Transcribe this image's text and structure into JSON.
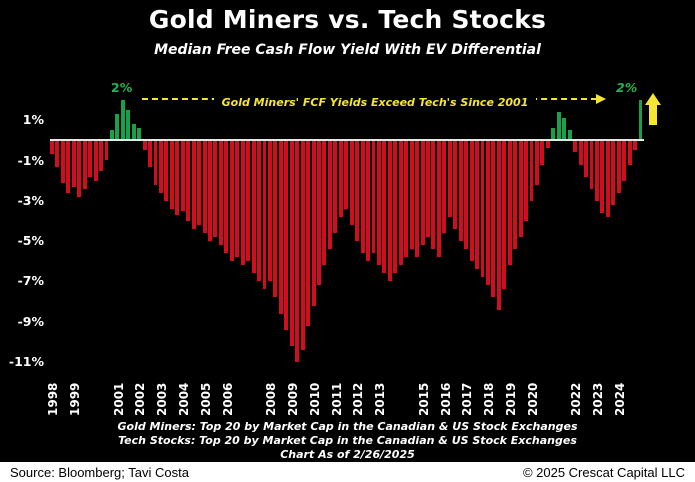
{
  "header": {
    "title": "Gold Miners vs. Tech Stocks",
    "subtitle": "Median Free Cash Flow Yield With EV Differential"
  },
  "chart_data": {
    "type": "bar",
    "title": "Gold Miners vs. Tech Stocks",
    "subtitle": "Median Free Cash Flow Yield With EV Differential",
    "xlabel": "",
    "ylabel": "",
    "ylim": [
      -11.5,
      2.5
    ],
    "grid": false,
    "frequency": "quarterly",
    "x_start_year": 1998,
    "bar_color_negative": "#d10e1e",
    "bar_color_positive": "#18a14a",
    "zero_line_color": "#e6e6e6",
    "yticks": [
      {
        "label": "1%",
        "value": 1
      },
      {
        "label": "-1%",
        "value": -1
      },
      {
        "label": "-3%",
        "value": -3
      },
      {
        "label": "-5%",
        "value": -5
      },
      {
        "label": "-7%",
        "value": -7
      },
      {
        "label": "-9%",
        "value": -9
      },
      {
        "label": "-11%",
        "value": -11
      }
    ],
    "x_year_labels": [
      1998,
      1999,
      2001,
      2002,
      2003,
      2004,
      2005,
      2006,
      2008,
      2009,
      2010,
      2011,
      2012,
      2013,
      2015,
      2016,
      2017,
      2018,
      2019,
      2020,
      2022,
      2023,
      2024
    ],
    "series_quarterly": [
      {
        "year": 1998,
        "values": [
          -0.7,
          -1.3,
          -2.1,
          -2.6
        ]
      },
      {
        "year": 1999,
        "values": [
          -2.3,
          -2.8,
          -2.4,
          -1.8
        ]
      },
      {
        "year": 2000,
        "values": [
          -2.0,
          -1.5,
          -1.0,
          0.5
        ]
      },
      {
        "year": 2001,
        "values": [
          1.3,
          2.0,
          1.5,
          0.8
        ]
      },
      {
        "year": 2002,
        "values": [
          0.6,
          -0.5,
          -1.3,
          -2.2
        ]
      },
      {
        "year": 2003,
        "values": [
          -2.6,
          -3.0,
          -3.4,
          -3.7
        ]
      },
      {
        "year": 2004,
        "values": [
          -3.5,
          -4.0,
          -4.4,
          -4.2
        ]
      },
      {
        "year": 2005,
        "values": [
          -4.6,
          -5.0,
          -4.8,
          -5.2
        ]
      },
      {
        "year": 2006,
        "values": [
          -5.6,
          -6.0,
          -5.8,
          -6.2
        ]
      },
      {
        "year": 2007,
        "values": [
          -6.0,
          -6.6,
          -7.0,
          -7.4
        ]
      },
      {
        "year": 2008,
        "values": [
          -7.0,
          -7.8,
          -8.6,
          -9.4
        ]
      },
      {
        "year": 2009,
        "values": [
          -10.2,
          -11.0,
          -10.4,
          -9.2
        ]
      },
      {
        "year": 2010,
        "values": [
          -8.2,
          -7.2,
          -6.2,
          -5.4
        ]
      },
      {
        "year": 2011,
        "values": [
          -4.6,
          -3.8,
          -3.4,
          -4.2
        ]
      },
      {
        "year": 2012,
        "values": [
          -5.0,
          -5.6,
          -6.0,
          -5.6
        ]
      },
      {
        "year": 2013,
        "values": [
          -6.2,
          -6.6,
          -7.0,
          -6.6
        ]
      },
      {
        "year": 2014,
        "values": [
          -6.2,
          -5.8,
          -5.4,
          -5.8
        ]
      },
      {
        "year": 2015,
        "values": [
          -5.2,
          -4.8,
          -5.4,
          -5.8
        ]
      },
      {
        "year": 2016,
        "values": [
          -4.6,
          -3.8,
          -4.4,
          -5.0
        ]
      },
      {
        "year": 2017,
        "values": [
          -5.4,
          -6.0,
          -6.4,
          -6.8
        ]
      },
      {
        "year": 2018,
        "values": [
          -7.2,
          -7.8,
          -8.4,
          -7.4
        ]
      },
      {
        "year": 2019,
        "values": [
          -6.2,
          -5.4,
          -4.8,
          -4.0
        ]
      },
      {
        "year": 2020,
        "values": [
          -3.0,
          -2.2,
          -1.2,
          -0.4
        ]
      },
      {
        "year": 2021,
        "values": [
          0.6,
          1.4,
          1.1,
          0.5
        ]
      },
      {
        "year": 2022,
        "values": [
          -0.6,
          -1.2,
          -1.8,
          -2.4
        ]
      },
      {
        "year": 2023,
        "values": [
          -3.0,
          -3.6,
          -3.8,
          -3.2
        ]
      },
      {
        "year": 2024,
        "values": [
          -2.6,
          -2.0,
          -1.2,
          -0.5
        ]
      },
      {
        "year": 2025,
        "values": [
          2.0
        ]
      }
    ],
    "annotations": {
      "arrow_label": "Gold Miners' FCF Yields Exceed Tech's Since 2001",
      "peak_left": "2%",
      "peak_right": "2%",
      "arrow_color": "#f5e636",
      "peak_label_color": "#25b253",
      "up_arrow_icon": "yellow-up-arrow"
    }
  },
  "footnotes": {
    "gold_miners": "Gold Miners: Top 20 by Market Cap in the Canadian & US Stock Exchanges",
    "tech_stocks": "Tech Stocks: Top 20 by Market Cap in the Canadian & US Stock Exchanges",
    "as_of": "Chart As of 2/26/2025"
  },
  "footer": {
    "source": "Source: Bloomberg; Tavi Costa",
    "copyright": "© 2025 Crescat Capital LLC"
  },
  "colors": {
    "background": "#000000",
    "text": "#ffffff",
    "footer_background": "#ffffff",
    "footer_text": "#000000"
  }
}
